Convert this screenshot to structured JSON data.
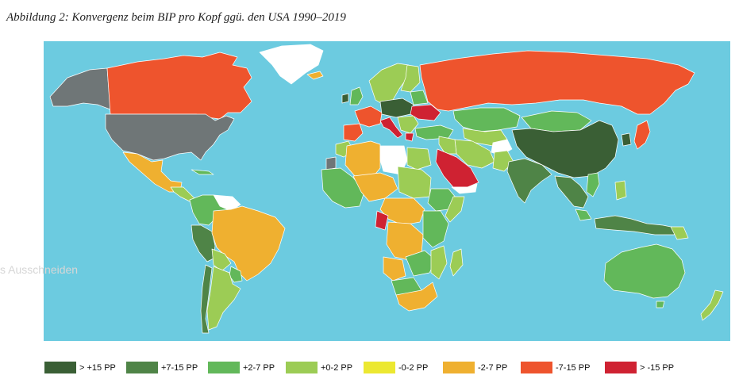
{
  "title": "Abbildung 2: Konvergenz beim BIP pro Kopf ggü. den USA 1990–2019",
  "overlay_text": "s Ausschneiden",
  "colors": {
    "ocean": "#6ccbe0",
    "no_data": "#ffffff",
    "gt15": "#3a5f35",
    "p7_15": "#4f8447",
    "p2_7": "#62b85a",
    "p0_2": "#9ccc55",
    "m0_2": "#ece831",
    "m2_7": "#efb030",
    "m7_15": "#ee542d",
    "lt15": "#cf2232",
    "grey": "#6f7677"
  },
  "legend": [
    {
      "label": "> +15 PP",
      "color": "#3a5f35"
    },
    {
      "label": "+7-15 PP",
      "color": "#4f8447"
    },
    {
      "label": "+2-7 PP",
      "color": "#62b85a"
    },
    {
      "label": "+0-2 PP",
      "color": "#9ccc55"
    },
    {
      "label": "-0-2 PP",
      "color": "#ece831"
    },
    {
      "label": "-2-7 PP",
      "color": "#efb030"
    },
    {
      "label": "-7-15 PP",
      "color": "#ee542d"
    },
    {
      "label": "> -15 PP",
      "color": "#cf2232"
    }
  ]
}
